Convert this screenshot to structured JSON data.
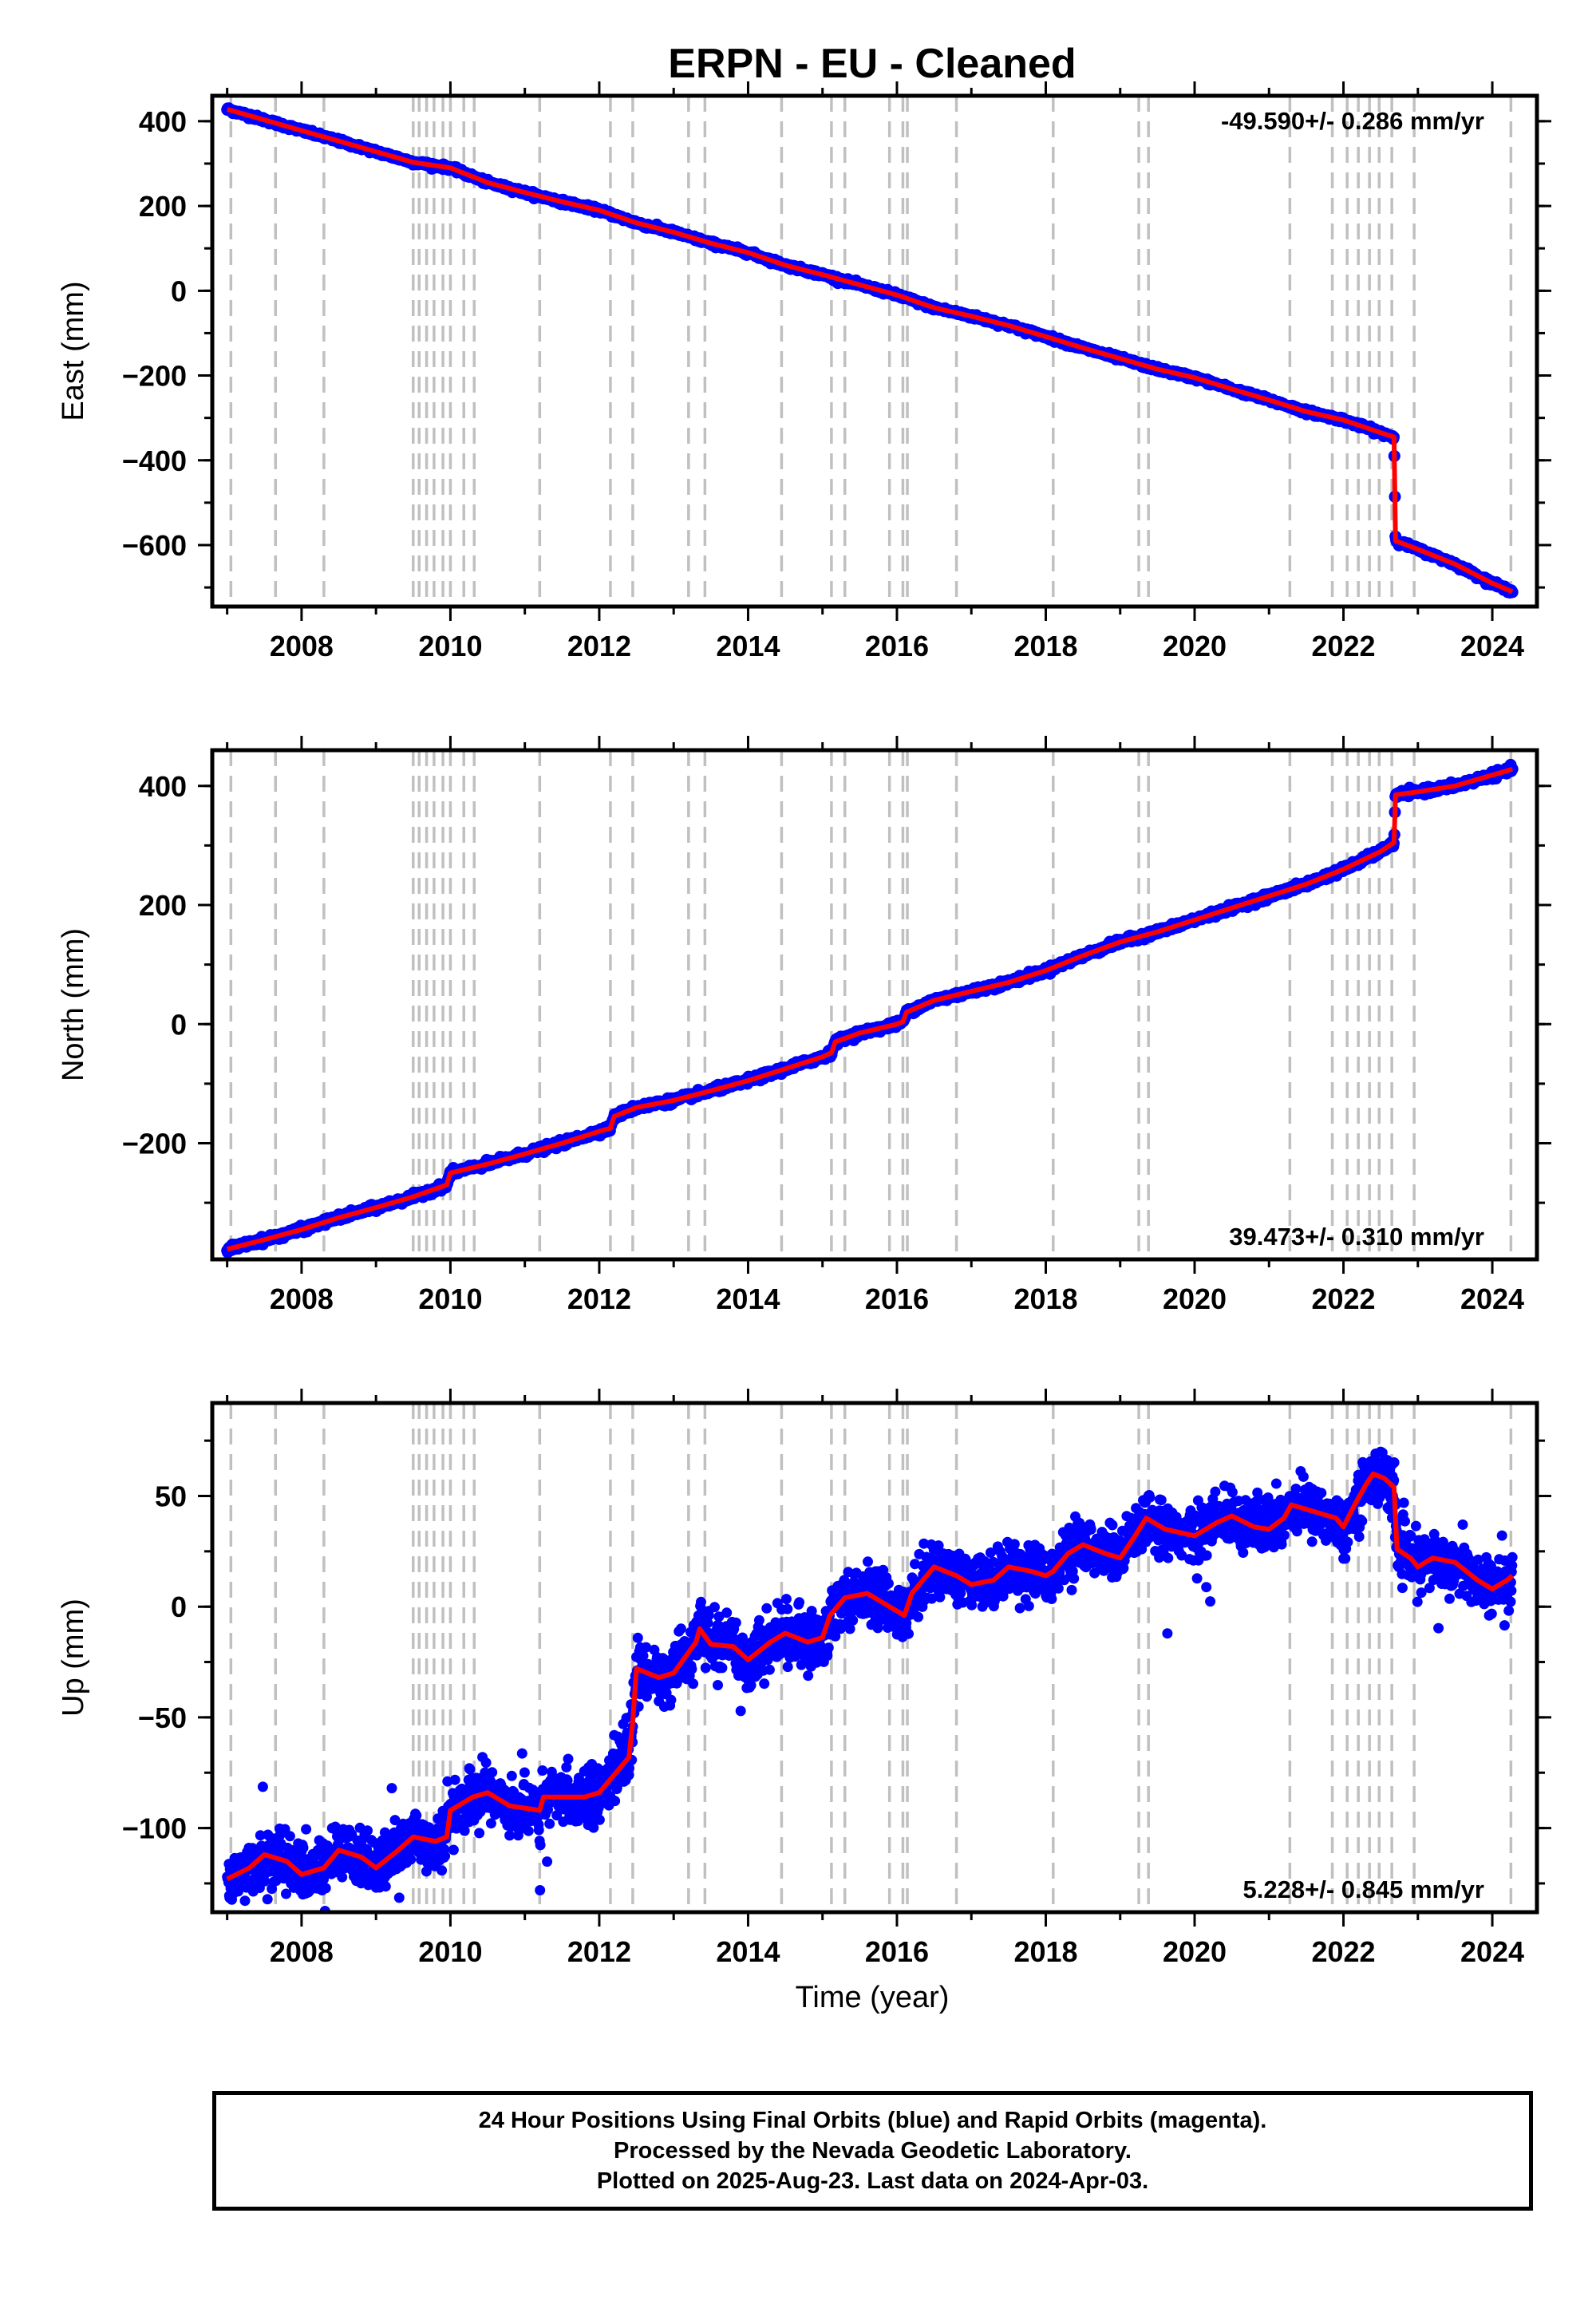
{
  "title": "ERPN  - EU - Cleaned",
  "xlabel": "Time (year)",
  "chart_data": [
    {
      "type": "scatter",
      "ylabel": "East (mm)",
      "rate_label": "-49.590+/- 0.286 mm/yr",
      "xlim": [
        2006.8,
        2024.6
      ],
      "ylim": [
        -745,
        460
      ],
      "x_ticks": [
        2008,
        2010,
        2012,
        2014,
        2016,
        2018,
        2020,
        2022,
        2024
      ],
      "y_ticks": [
        400,
        200,
        0,
        -200,
        -400,
        -600
      ],
      "fit": [
        [
          2007.0,
          428
        ],
        [
          2007.5,
          403
        ],
        [
          2008.0,
          378
        ],
        [
          2008.5,
          353
        ],
        [
          2009.0,
          328
        ],
        [
          2009.5,
          303
        ],
        [
          2010.0,
          290
        ],
        [
          2010.5,
          255
        ],
        [
          2011.0,
          232
        ],
        [
          2011.5,
          210
        ],
        [
          2012.0,
          190
        ],
        [
          2012.5,
          160
        ],
        [
          2013.0,
          138
        ],
        [
          2013.5,
          112
        ],
        [
          2014.0,
          90
        ],
        [
          2014.5,
          60
        ],
        [
          2015.0,
          38
        ],
        [
          2015.5,
          14
        ],
        [
          2016.0,
          -10
        ],
        [
          2016.5,
          -40
        ],
        [
          2017.0,
          -60
        ],
        [
          2017.5,
          -82
        ],
        [
          2018.0,
          -108
        ],
        [
          2018.5,
          -135
        ],
        [
          2019.0,
          -160
        ],
        [
          2019.5,
          -185
        ],
        [
          2020.0,
          -205
        ],
        [
          2020.5,
          -232
        ],
        [
          2021.0,
          -258
        ],
        [
          2021.5,
          -285
        ],
        [
          2022.0,
          -305
        ],
        [
          2022.5,
          -335
        ],
        [
          2022.68,
          -345
        ],
        [
          2022.7,
          -590
        ],
        [
          2023.0,
          -610
        ],
        [
          2023.5,
          -645
        ],
        [
          2024.0,
          -690
        ],
        [
          2024.27,
          -710
        ]
      ]
    },
    {
      "type": "scatter",
      "ylabel": "North (mm)",
      "rate_label": "39.473+/- 0.310 mm/yr",
      "xlim": [
        2006.8,
        2024.6
      ],
      "ylim": [
        -395,
        460
      ],
      "x_ticks": [
        2008,
        2010,
        2012,
        2014,
        2016,
        2018,
        2020,
        2022,
        2024
      ],
      "y_ticks": [
        400,
        200,
        0,
        -200
      ],
      "fit": [
        [
          2007.0,
          -378
        ],
        [
          2007.5,
          -362
        ],
        [
          2008.0,
          -345
        ],
        [
          2008.5,
          -325
        ],
        [
          2009.0,
          -308
        ],
        [
          2009.5,
          -290
        ],
        [
          2009.95,
          -270
        ],
        [
          2010.0,
          -250
        ],
        [
          2010.5,
          -235
        ],
        [
          2011.0,
          -218
        ],
        [
          2011.5,
          -200
        ],
        [
          2012.0,
          -180
        ],
        [
          2012.15,
          -175
        ],
        [
          2012.2,
          -155
        ],
        [
          2012.5,
          -140
        ],
        [
          2013.0,
          -128
        ],
        [
          2013.5,
          -112
        ],
        [
          2014.0,
          -95
        ],
        [
          2014.5,
          -75
        ],
        [
          2015.0,
          -55
        ],
        [
          2015.12,
          -48
        ],
        [
          2015.17,
          -30
        ],
        [
          2015.5,
          -15
        ],
        [
          2016.0,
          0
        ],
        [
          2016.08,
          4
        ],
        [
          2016.13,
          20
        ],
        [
          2016.5,
          40
        ],
        [
          2017.0,
          55
        ],
        [
          2017.5,
          70
        ],
        [
          2018.0,
          90
        ],
        [
          2018.5,
          115
        ],
        [
          2019.0,
          138
        ],
        [
          2019.5,
          155
        ],
        [
          2020.0,
          175
        ],
        [
          2020.5,
          195
        ],
        [
          2021.0,
          215
        ],
        [
          2021.5,
          235
        ],
        [
          2022.0,
          260
        ],
        [
          2022.5,
          290
        ],
        [
          2022.68,
          305
        ],
        [
          2022.7,
          385
        ],
        [
          2023.0,
          390
        ],
        [
          2023.5,
          400
        ],
        [
          2024.0,
          418
        ],
        [
          2024.27,
          428
        ]
      ]
    },
    {
      "type": "scatter",
      "ylabel": "Up (mm)",
      "rate_label": "5.228+/- 0.845 mm/yr",
      "xlim": [
        2006.8,
        2024.6
      ],
      "ylim": [
        -138,
        92
      ],
      "x_ticks": [
        2008,
        2010,
        2012,
        2014,
        2016,
        2018,
        2020,
        2022,
        2024
      ],
      "y_ticks": [
        50,
        0,
        -50,
        -100
      ],
      "fit": [
        [
          2007.0,
          -123
        ],
        [
          2007.3,
          -118
        ],
        [
          2007.5,
          -112
        ],
        [
          2007.8,
          -115
        ],
        [
          2008.0,
          -121
        ],
        [
          2008.3,
          -118
        ],
        [
          2008.5,
          -110
        ],
        [
          2008.8,
          -113
        ],
        [
          2009.0,
          -118
        ],
        [
          2009.3,
          -110
        ],
        [
          2009.5,
          -104
        ],
        [
          2009.8,
          -106
        ],
        [
          2009.95,
          -104
        ],
        [
          2010.0,
          -92
        ],
        [
          2010.3,
          -86
        ],
        [
          2010.5,
          -84
        ],
        [
          2010.8,
          -90
        ],
        [
          2011.0,
          -91
        ],
        [
          2011.2,
          -92
        ],
        [
          2011.25,
          -86
        ],
        [
          2011.5,
          -86
        ],
        [
          2011.8,
          -86
        ],
        [
          2012.0,
          -84
        ],
        [
          2012.2,
          -76
        ],
        [
          2012.4,
          -68
        ],
        [
          2012.45,
          -52
        ],
        [
          2012.5,
          -28
        ],
        [
          2012.8,
          -32
        ],
        [
          2013.0,
          -30
        ],
        [
          2013.3,
          -16
        ],
        [
          2013.35,
          -10
        ],
        [
          2013.5,
          -17
        ],
        [
          2013.8,
          -18
        ],
        [
          2014.0,
          -24
        ],
        [
          2014.3,
          -16
        ],
        [
          2014.5,
          -12
        ],
        [
          2014.8,
          -16
        ],
        [
          2015.0,
          -14
        ],
        [
          2015.1,
          -4
        ],
        [
          2015.3,
          4
        ],
        [
          2015.6,
          6
        ],
        [
          2016.0,
          -2
        ],
        [
          2016.1,
          -4
        ],
        [
          2016.2,
          6
        ],
        [
          2016.5,
          18
        ],
        [
          2016.8,
          14
        ],
        [
          2017.0,
          10
        ],
        [
          2017.3,
          12
        ],
        [
          2017.5,
          18
        ],
        [
          2017.8,
          16
        ],
        [
          2018.0,
          14
        ],
        [
          2018.1,
          16
        ],
        [
          2018.3,
          24
        ],
        [
          2018.5,
          28
        ],
        [
          2018.8,
          24
        ],
        [
          2019.0,
          22
        ],
        [
          2019.2,
          32
        ],
        [
          2019.35,
          40
        ],
        [
          2019.6,
          35
        ],
        [
          2020.0,
          32
        ],
        [
          2020.3,
          38
        ],
        [
          2020.5,
          41
        ],
        [
          2020.8,
          36
        ],
        [
          2021.0,
          35
        ],
        [
          2021.2,
          40
        ],
        [
          2021.3,
          46
        ],
        [
          2021.6,
          43
        ],
        [
          2021.9,
          40
        ],
        [
          2022.0,
          36
        ],
        [
          2022.15,
          46
        ],
        [
          2022.3,
          55
        ],
        [
          2022.4,
          60
        ],
        [
          2022.55,
          58
        ],
        [
          2022.68,
          54
        ],
        [
          2022.72,
          26
        ],
        [
          2022.9,
          22
        ],
        [
          2023.0,
          18
        ],
        [
          2023.2,
          22
        ],
        [
          2023.5,
          20
        ],
        [
          2023.8,
          12
        ],
        [
          2024.0,
          8
        ],
        [
          2024.2,
          12
        ],
        [
          2024.27,
          14
        ]
      ],
      "scatter_sigma": 6
    }
  ],
  "event_lines": [
    2007.05,
    2007.65,
    2008.3,
    2009.5,
    2009.58,
    2009.68,
    2009.78,
    2009.9,
    2010.0,
    2010.18,
    2010.32,
    2011.2,
    2012.15,
    2012.45,
    2013.2,
    2013.42,
    2014.45,
    2015.12,
    2015.3,
    2015.9,
    2016.08,
    2016.14,
    2016.8,
    2018.1,
    2019.25,
    2019.38,
    2021.28,
    2021.85,
    2022.05,
    2022.2,
    2022.35,
    2022.48,
    2022.65,
    2022.95,
    2024.25
  ],
  "footer": {
    "line1": "24 Hour Positions Using Final Orbits (blue) and Rapid Orbits (magenta).",
    "line2": "Processed by the Nevada Geodetic Laboratory.",
    "line3": "Plotted on 2025-Aug-23. Last data on 2024-Apr-03."
  },
  "colors": {
    "points": "#0000ff",
    "fit": "#ff0000",
    "events": "#c0c0c0",
    "frame": "#000000"
  }
}
